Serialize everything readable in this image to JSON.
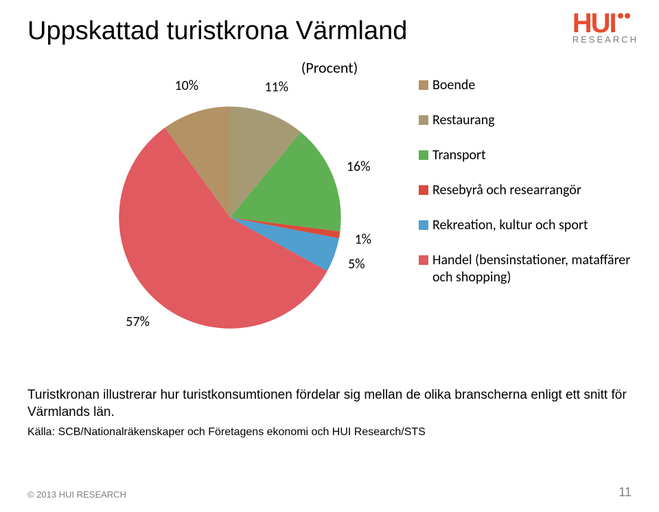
{
  "logo": {
    "main": "HUI",
    "sub": "RESEARCH",
    "main_color": "#e84b2c",
    "sub_color": "#7a7a7a"
  },
  "title": "Uppskattad turistkrona Värmland",
  "subtitle": "(Procent)",
  "chart": {
    "type": "pie",
    "background_color": "#ffffff",
    "slices": [
      {
        "label": "Boende",
        "value": 10,
        "color": "#b39266"
      },
      {
        "label": "Restaurang",
        "value": 11,
        "color": "#a69a75"
      },
      {
        "label": "Transport",
        "value": 16,
        "color": "#5fb053"
      },
      {
        "label": "Resebyrå och researrangör",
        "value": 1,
        "color": "#d94b3a"
      },
      {
        "label": "Rekreation, kultur och sport",
        "value": 5,
        "color": "#4f9fcf"
      },
      {
        "label": "Handel (bensinstationer, mataffärer och shopping)",
        "value": 57,
        "color": "#e05a5f"
      }
    ],
    "label_fontsize": 20,
    "legend_fontsize": 20,
    "start_angle_deg": -36
  },
  "description": "Turistkronan illustrerar hur turistkonsumtionen fördelar sig mellan de olika branscherna enligt ett snitt för Värmlands län.",
  "source": "Källa: SCB/Nationalräkenskaper och Företagens ekonomi och HUI Research/STS",
  "footer": {
    "left": "© 2013 HUI RESEARCH",
    "pagenum": "11"
  }
}
